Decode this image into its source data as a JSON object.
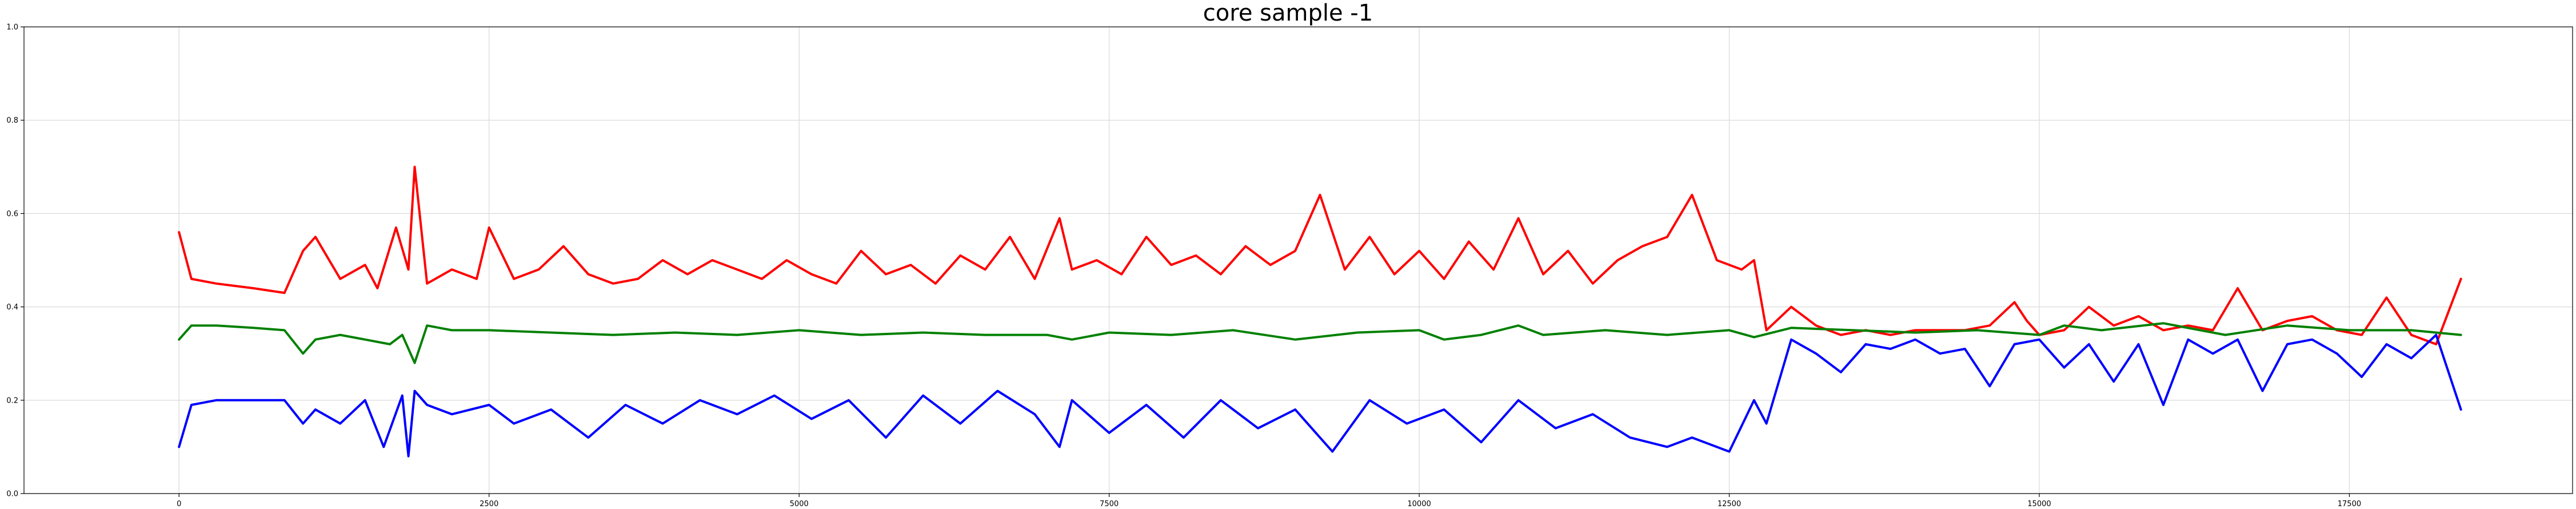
{
  "chart_data": {
    "type": "line",
    "title": "core sample -1",
    "xlabel": "",
    "ylabel": "",
    "xlim": [
      -1250,
      19300
    ],
    "ylim": [
      0.0,
      1.0
    ],
    "x_ticks": [
      0,
      2500,
      5000,
      7500,
      10000,
      12500,
      15000,
      17500
    ],
    "y_ticks": [
      0.0,
      0.2,
      0.4,
      0.6,
      0.8,
      1.0
    ],
    "grid": true,
    "legend": "none",
    "series": [
      {
        "color": "#ff0000",
        "x": [
          0,
          100,
          300,
          600,
          850,
          1000,
          1100,
          1300,
          1500,
          1600,
          1750,
          1850,
          1900,
          2000,
          2200,
          2400,
          2500,
          2700,
          2900,
          3100,
          3300,
          3500,
          3700,
          3900,
          4100,
          4300,
          4500,
          4700,
          4900,
          5100,
          5300,
          5500,
          5700,
          5900,
          6100,
          6300,
          6500,
          6700,
          6900,
          7100,
          7200,
          7400,
          7600,
          7800,
          8000,
          8200,
          8400,
          8600,
          8800,
          9000,
          9200,
          9400,
          9600,
          9800,
          10000,
          10200,
          10400,
          10600,
          10800,
          11000,
          11200,
          11400,
          11600,
          11800,
          12000,
          12200,
          12400,
          12600,
          12700,
          12800,
          13000,
          13200,
          13400,
          13600,
          13800,
          14000,
          14200,
          14400,
          14600,
          14800,
          14900,
          15000,
          15200,
          15400,
          15600,
          15800,
          16000,
          16200,
          16400,
          16600,
          16800,
          17000,
          17200,
          17400,
          17600,
          17800,
          18000,
          18200,
          18400
        ],
        "y": [
          0.56,
          0.46,
          0.45,
          0.44,
          0.43,
          0.52,
          0.55,
          0.46,
          0.49,
          0.44,
          0.57,
          0.48,
          0.7,
          0.45,
          0.48,
          0.46,
          0.57,
          0.46,
          0.48,
          0.53,
          0.47,
          0.45,
          0.46,
          0.5,
          0.47,
          0.5,
          0.48,
          0.46,
          0.5,
          0.47,
          0.45,
          0.52,
          0.47,
          0.49,
          0.45,
          0.51,
          0.48,
          0.55,
          0.46,
          0.59,
          0.48,
          0.5,
          0.47,
          0.55,
          0.49,
          0.51,
          0.47,
          0.53,
          0.49,
          0.52,
          0.64,
          0.48,
          0.55,
          0.47,
          0.52,
          0.46,
          0.54,
          0.48,
          0.59,
          0.47,
          0.52,
          0.45,
          0.5,
          0.53,
          0.55,
          0.64,
          0.5,
          0.48,
          0.5,
          0.35,
          0.4,
          0.36,
          0.34,
          0.35,
          0.34,
          0.35,
          0.35,
          0.35,
          0.36,
          0.41,
          0.37,
          0.34,
          0.35,
          0.4,
          0.36,
          0.38,
          0.35,
          0.36,
          0.35,
          0.44,
          0.35,
          0.37,
          0.38,
          0.35,
          0.34,
          0.42,
          0.34,
          0.32,
          0.46
        ]
      },
      {
        "color": "#008000",
        "x": [
          0,
          100,
          300,
          600,
          850,
          1000,
          1100,
          1300,
          1500,
          1700,
          1800,
          1900,
          2000,
          2200,
          2500,
          3000,
          3500,
          4000,
          4500,
          5000,
          5500,
          6000,
          6500,
          7000,
          7200,
          7500,
          8000,
          8500,
          9000,
          9500,
          10000,
          10200,
          10500,
          10800,
          11000,
          11500,
          12000,
          12500,
          12700,
          13000,
          13500,
          14000,
          14500,
          15000,
          15200,
          15500,
          16000,
          16500,
          17000,
          17500,
          18000,
          18400
        ],
        "y": [
          0.33,
          0.36,
          0.36,
          0.355,
          0.35,
          0.3,
          0.33,
          0.34,
          0.33,
          0.32,
          0.34,
          0.28,
          0.36,
          0.35,
          0.35,
          0.345,
          0.34,
          0.345,
          0.34,
          0.35,
          0.34,
          0.345,
          0.34,
          0.34,
          0.33,
          0.345,
          0.34,
          0.35,
          0.33,
          0.345,
          0.35,
          0.33,
          0.34,
          0.36,
          0.34,
          0.35,
          0.34,
          0.35,
          0.335,
          0.355,
          0.35,
          0.345,
          0.35,
          0.34,
          0.36,
          0.35,
          0.365,
          0.34,
          0.36,
          0.35,
          0.35,
          0.34
        ]
      },
      {
        "color": "#0000ff",
        "x": [
          0,
          100,
          300,
          600,
          850,
          1000,
          1100,
          1300,
          1500,
          1650,
          1800,
          1850,
          1900,
          2000,
          2200,
          2500,
          2700,
          3000,
          3300,
          3600,
          3900,
          4200,
          4500,
          4800,
          5100,
          5400,
          5700,
          6000,
          6300,
          6600,
          6900,
          7100,
          7200,
          7500,
          7800,
          8100,
          8400,
          8700,
          9000,
          9300,
          9600,
          9900,
          10200,
          10500,
          10800,
          11100,
          11400,
          11700,
          12000,
          12200,
          12500,
          12700,
          12800,
          13000,
          13200,
          13400,
          13600,
          13800,
          14000,
          14200,
          14400,
          14600,
          14800,
          15000,
          15200,
          15400,
          15600,
          15800,
          16000,
          16200,
          16400,
          16600,
          16800,
          17000,
          17200,
          17400,
          17600,
          17800,
          18000,
          18200,
          18400
        ],
        "y": [
          0.1,
          0.19,
          0.2,
          0.2,
          0.2,
          0.15,
          0.18,
          0.15,
          0.2,
          0.1,
          0.21,
          0.08,
          0.22,
          0.19,
          0.17,
          0.19,
          0.15,
          0.18,
          0.12,
          0.19,
          0.15,
          0.2,
          0.17,
          0.21,
          0.16,
          0.2,
          0.12,
          0.21,
          0.15,
          0.22,
          0.17,
          0.1,
          0.2,
          0.13,
          0.19,
          0.12,
          0.2,
          0.14,
          0.18,
          0.09,
          0.2,
          0.15,
          0.18,
          0.11,
          0.2,
          0.14,
          0.17,
          0.12,
          0.1,
          0.12,
          0.09,
          0.2,
          0.15,
          0.33,
          0.3,
          0.26,
          0.32,
          0.31,
          0.33,
          0.3,
          0.31,
          0.23,
          0.32,
          0.33,
          0.27,
          0.32,
          0.24,
          0.32,
          0.19,
          0.33,
          0.3,
          0.33,
          0.22,
          0.32,
          0.33,
          0.3,
          0.25,
          0.32,
          0.29,
          0.34,
          0.18
        ]
      }
    ]
  }
}
